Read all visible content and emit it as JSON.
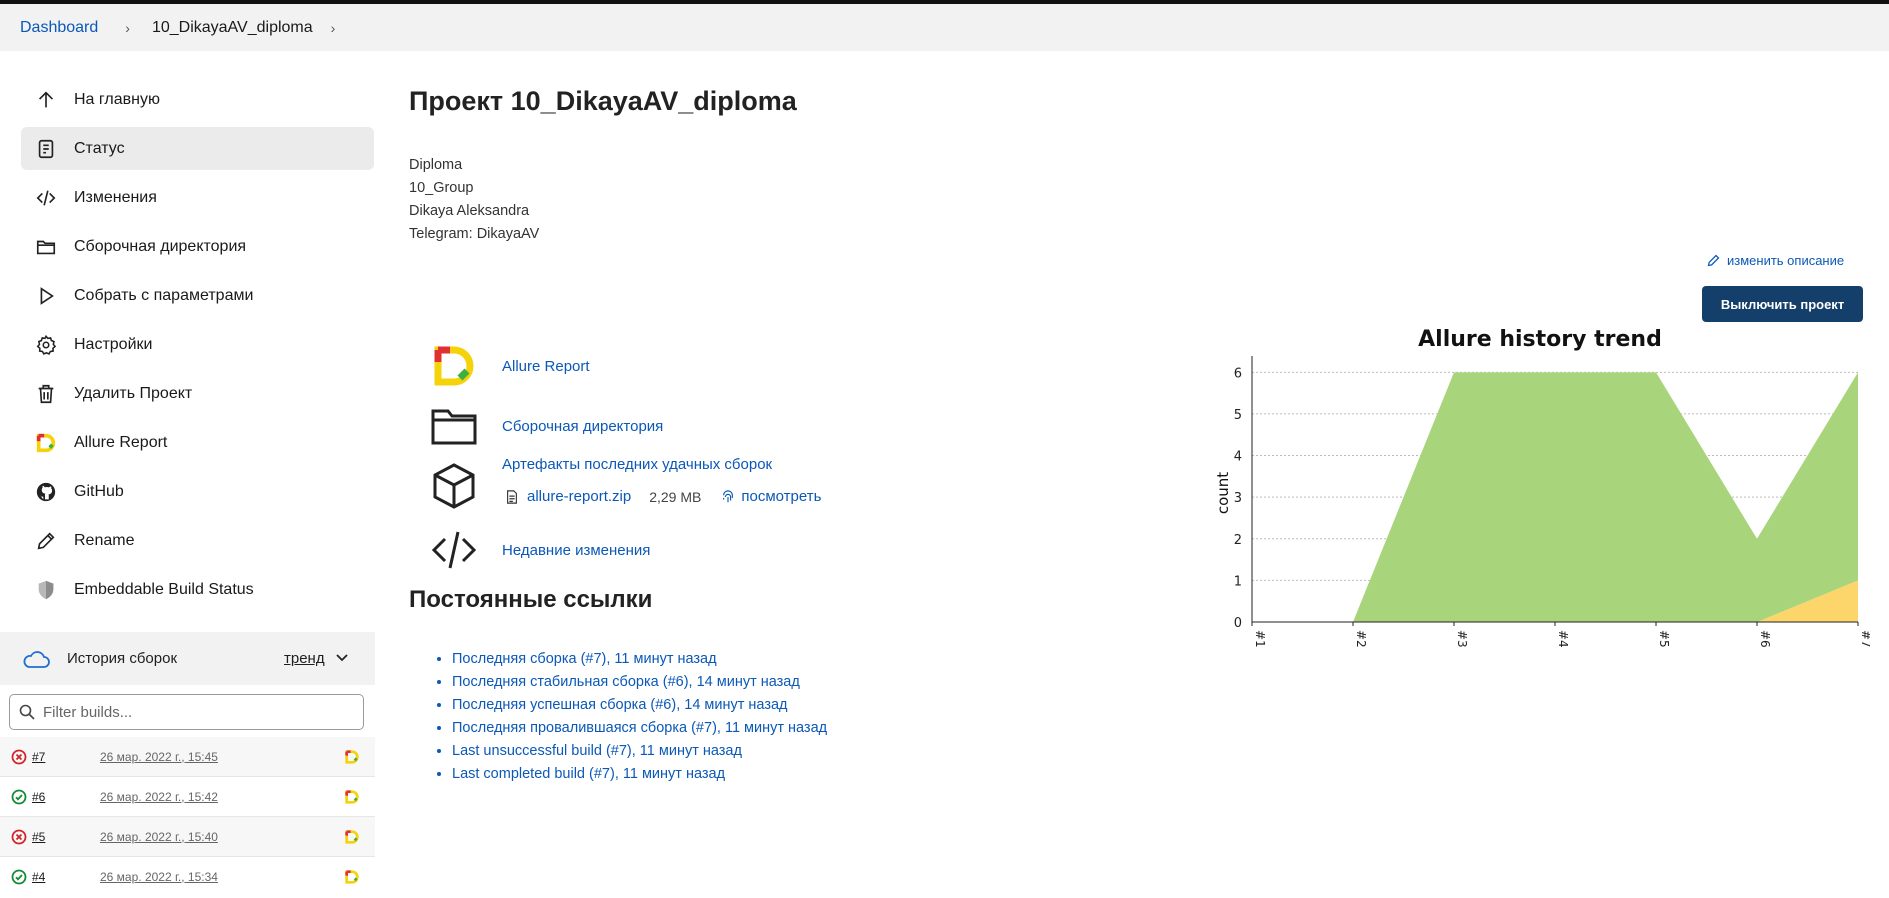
{
  "breadcrumbs": {
    "root": "Dashboard",
    "job": "10_DikayaAV_diploma"
  },
  "sidebar": {
    "items": [
      {
        "label": "На главную",
        "icon": "arrow-up-icon"
      },
      {
        "label": "Статус",
        "icon": "document-icon"
      },
      {
        "label": "Изменения",
        "icon": "code-icon"
      },
      {
        "label": "Сборочная директория",
        "icon": "folder-icon"
      },
      {
        "label": "Собрать с параметрами",
        "icon": "play-icon"
      },
      {
        "label": "Настройки",
        "icon": "gear-icon"
      },
      {
        "label": "Удалить Проект",
        "icon": "trash-icon"
      },
      {
        "label": "Allure Report",
        "icon": "allure-icon"
      },
      {
        "label": "GitHub",
        "icon": "github-icon"
      },
      {
        "label": "Rename",
        "icon": "pencil-icon"
      },
      {
        "label": "Embeddable Build Status",
        "icon": "shield-icon"
      }
    ],
    "active_index": 1
  },
  "history": {
    "title": "История сборок",
    "trend_label": "тренд",
    "filter_placeholder": "Filter builds...",
    "builds": [
      {
        "num": "#7",
        "date": "26 мар. 2022 г., 15:45",
        "status": "failed"
      },
      {
        "num": "#6",
        "date": "26 мар. 2022 г., 15:42",
        "status": "success"
      },
      {
        "num": "#5",
        "date": "26 мар. 2022 г., 15:40",
        "status": "failed"
      },
      {
        "num": "#4",
        "date": "26 мар. 2022 г., 15:34",
        "status": "success"
      }
    ]
  },
  "main": {
    "title": "Проект 10_DikayaAV_diploma",
    "description": [
      "Diploma",
      "10_Group",
      "Dikaya Aleksandra",
      "Telegram: DikayaAV"
    ],
    "edit_description": "изменить описание",
    "disable_button": "Выключить проект",
    "links": {
      "allure": "Allure Report",
      "workspace": "Сборочная директория",
      "artifacts": "Артефакты последних удачных сборок",
      "artifact_file": "allure-report.zip",
      "artifact_size": "2,29 MB",
      "artifact_view": "посмотреть",
      "changes": "Недавние изменения"
    },
    "permalinks_title": "Постоянные ссылки",
    "permalinks": [
      "Последняя сборка (#7), 11 минут назад",
      "Последняя стабильная сборка (#6), 14 минут назад",
      "Последняя успешная сборка (#6), 14 минут назад",
      "Последняя провалившаяся сборка (#7), 11 минут назад",
      "Last unsuccessful build (#7), 11 минут назад",
      "Last completed build (#7), 11 минут назад"
    ]
  },
  "colors": {
    "accent": "#0b58b8",
    "button": "#143f6a",
    "passed": "#a8d47b",
    "failed": "#fcd66b"
  },
  "chart_data": {
    "type": "area",
    "title": "Allure history trend",
    "ylabel": "count",
    "xlabel": "",
    "categories": [
      "#1",
      "#2",
      "#3",
      "#4",
      "#5",
      "#6",
      "#7"
    ],
    "series": [
      {
        "name": "",
        "color": "#fcd66b",
        "values": [
          0,
          0,
          0,
          0,
          0,
          0,
          1
        ]
      },
      {
        "name": "",
        "color": "#a8d47b",
        "values": [
          0,
          0,
          6,
          6,
          6,
          2,
          5
        ]
      }
    ],
    "stacked": true,
    "ylim": [
      0,
      6.2
    ],
    "yticks": [
      0,
      1,
      2,
      3,
      4,
      5,
      6
    ],
    "grid": true
  }
}
